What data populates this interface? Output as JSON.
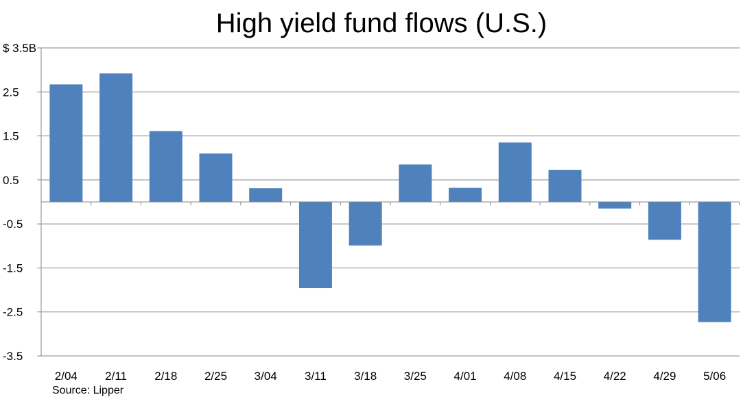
{
  "chart_data": {
    "type": "bar",
    "title": "High yield fund flows (U.S.)",
    "categories": [
      "2/04",
      "2/11",
      "2/18",
      "2/25",
      "3/04",
      "3/11",
      "3/18",
      "3/25",
      "4/01",
      "4/08",
      "4/15",
      "4/22",
      "4/29",
      "5/06"
    ],
    "series": [
      {
        "name": "High yield fund flows",
        "values": [
          2.67,
          2.92,
          1.61,
          1.1,
          0.31,
          -1.96,
          -0.99,
          0.85,
          0.32,
          1.35,
          0.73,
          -0.15,
          -0.86,
          -2.73
        ]
      }
    ],
    "yticks": [
      3.5,
      2.5,
      1.5,
      0.5,
      -0.5,
      -1.5,
      -2.5,
      -3.5
    ],
    "ytick_labels": [
      "$ 3.5B",
      "2.5",
      "1.5",
      "0.5",
      "-0.5",
      "-1.5",
      "-2.5",
      "-3.5"
    ],
    "ylim": [
      -3.5,
      3.5
    ],
    "xlabel": "",
    "ylabel": "",
    "grid": true,
    "bar_color": "#4F81BD",
    "grid_color": "#868686",
    "source": "Source: Lipper"
  }
}
